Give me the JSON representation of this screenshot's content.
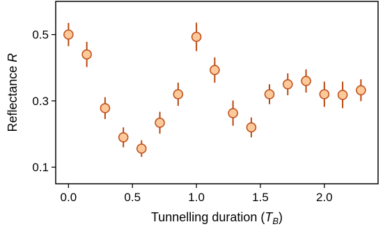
{
  "chart_data": {
    "type": "scatter",
    "title": "",
    "xlabel": {
      "prefix": "Tunnelling duration (",
      "sym": "T",
      "sub": "B",
      "suffix": ")"
    },
    "ylabel": {
      "prefix": "Reflectance ",
      "sym": "R"
    },
    "xlim": [
      -0.1,
      2.42
    ],
    "ylim": [
      0.05,
      0.6
    ],
    "xticks": [
      0.0,
      0.5,
      1.0,
      1.5,
      2.0
    ],
    "xtick_labels": [
      "0.0",
      "0.5",
      "1.0",
      "1.5",
      "2.0"
    ],
    "yticks": [
      0.1,
      0.3,
      0.5
    ],
    "ytick_labels": [
      "0.1",
      "0.3",
      "0.5"
    ],
    "grid": false,
    "legend": "none",
    "marker_fill": "#fcc99a",
    "marker_edge": "#c0501a",
    "errorbar_color": "#b8470f",
    "points": [
      {
        "x": 0.0,
        "y": 0.5,
        "err": 0.035
      },
      {
        "x": 0.143,
        "y": 0.44,
        "err": 0.038
      },
      {
        "x": 0.286,
        "y": 0.278,
        "err": 0.033
      },
      {
        "x": 0.429,
        "y": 0.19,
        "err": 0.03
      },
      {
        "x": 0.571,
        "y": 0.156,
        "err": 0.025
      },
      {
        "x": 0.714,
        "y": 0.234,
        "err": 0.033
      },
      {
        "x": 0.857,
        "y": 0.32,
        "err": 0.035
      },
      {
        "x": 1.0,
        "y": 0.493,
        "err": 0.043
      },
      {
        "x": 1.143,
        "y": 0.393,
        "err": 0.038
      },
      {
        "x": 1.286,
        "y": 0.263,
        "err": 0.038
      },
      {
        "x": 1.429,
        "y": 0.22,
        "err": 0.03
      },
      {
        "x": 1.571,
        "y": 0.32,
        "err": 0.03
      },
      {
        "x": 1.714,
        "y": 0.35,
        "err": 0.033
      },
      {
        "x": 1.857,
        "y": 0.36,
        "err": 0.035
      },
      {
        "x": 2.0,
        "y": 0.32,
        "err": 0.038
      },
      {
        "x": 2.143,
        "y": 0.318,
        "err": 0.04
      },
      {
        "x": 2.286,
        "y": 0.332,
        "err": 0.033
      }
    ]
  }
}
